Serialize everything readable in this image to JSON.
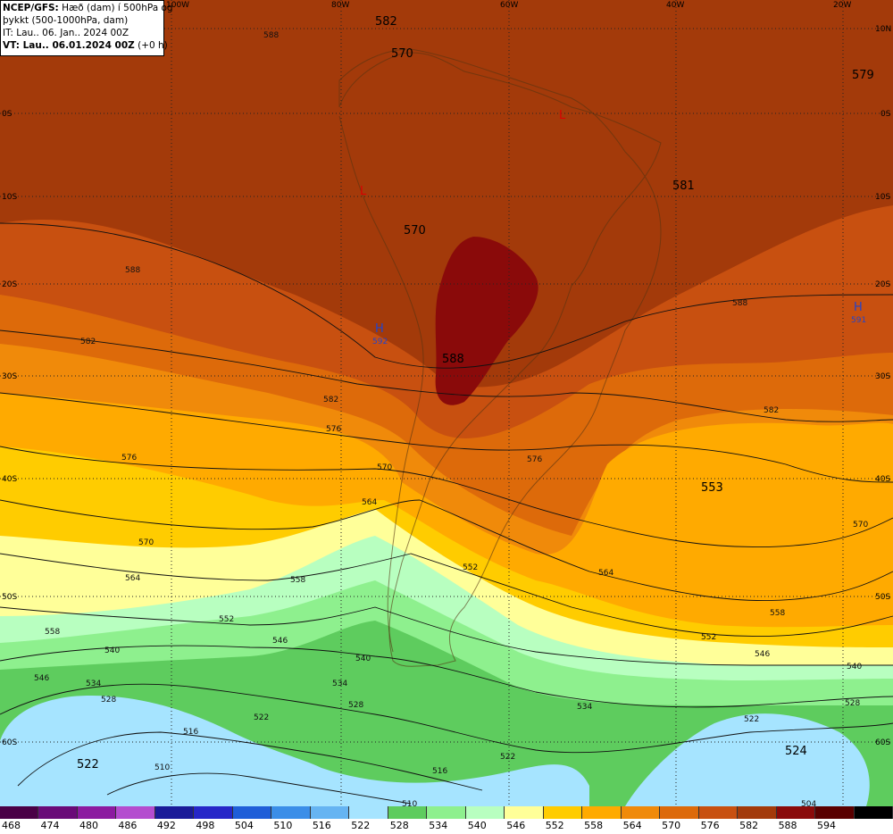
{
  "header": {
    "line1_bold": "NCEP/GFS:",
    "line1_rest": " Hæð (dam) í 500hPa og",
    "line2": "þykkt (500-1000hPa, dam)",
    "line3": "IT: Lau.. 06. Jan.. 2024 00Z",
    "line4_bold": "VT: Lau.. 06.01.2024 00Z",
    "line4_rest": " (+0 h)"
  },
  "longitude_labels": [
    "100W",
    "80W",
    "60W",
    "40W",
    "20W"
  ],
  "latitude_labels": [
    "10N",
    "0S",
    "10S",
    "20S",
    "30S",
    "40S",
    "50S",
    "60S"
  ],
  "big_labels": [
    "582",
    "570",
    "579",
    "581",
    "570",
    "588",
    "553",
    "522",
    "524"
  ],
  "pressure_centers": [
    {
      "letter": "H",
      "value": "592",
      "color": "#2244cc"
    },
    {
      "letter": "H",
      "value": "591",
      "color": "#2244cc"
    },
    {
      "letter": "L",
      "value": "",
      "color": "#dd0000"
    },
    {
      "letter": "L",
      "value": "",
      "color": "#dd0000"
    }
  ],
  "contour_labels": [
    "588",
    "588",
    "588",
    "582",
    "582",
    "582",
    "576",
    "576",
    "576",
    "570",
    "570",
    "570",
    "564",
    "564",
    "564",
    "558",
    "558",
    "558",
    "552",
    "552",
    "552",
    "546",
    "546",
    "546",
    "540",
    "540",
    "540",
    "534",
    "534",
    "534",
    "528",
    "528",
    "528",
    "522",
    "522",
    "522",
    "516",
    "516",
    "510",
    "510",
    "504"
  ],
  "legend": {
    "values": [
      "468",
      "474",
      "480",
      "486",
      "492",
      "498",
      "504",
      "510",
      "516",
      "522",
      "528",
      "534",
      "540",
      "546",
      "552",
      "558",
      "564",
      "570",
      "576",
      "582",
      "588",
      "594"
    ],
    "colors": [
      "#4a0046",
      "#6a0a78",
      "#8c1aa0",
      "#b44ccf",
      "#1a1a99",
      "#2626c8",
      "#1f5ed8",
      "#3b8ee8",
      "#66b4f2",
      "#a6e4ff",
      "#5ecc5e",
      "#8ef08e",
      "#b8ffc0",
      "#ffff99",
      "#ffcc00",
      "#ffaa00",
      "#f08a0a",
      "#dd6a0a",
      "#c85010",
      "#a33a0a",
      "#8a0a0a",
      "#5a0000"
    ],
    "top_color": "#000000"
  }
}
